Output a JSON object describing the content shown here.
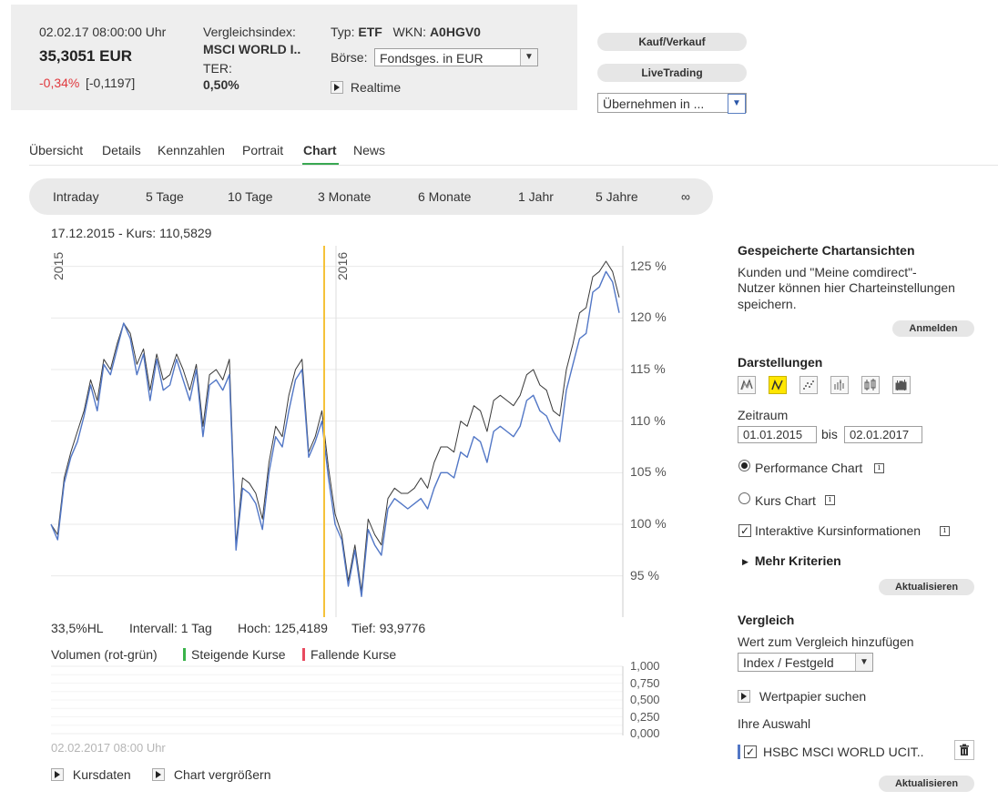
{
  "header": {
    "datetime": "02.02.17  08:00:00 Uhr",
    "price": "35,3051 EUR",
    "change_pct": "-0,34%",
    "change_abs": "[-0,1197]",
    "index_label": "Vergleichsindex:",
    "index_value": "MSCI WORLD I..",
    "ter_label": "TER:",
    "ter_value": "0,50%",
    "typ_label": "Typ:",
    "typ_value": "ETF",
    "wkn_label": "WKN:",
    "wkn_value": "A0HGV0",
    "boerse_label": "Börse:",
    "boerse_value": "Fondsges. in EUR",
    "realtime_label": "Realtime",
    "kauf_button": "Kauf/Verkauf",
    "livetrading_button": "LiveTrading",
    "uebernehmen_value": "Übernehmen in ..."
  },
  "tabs": [
    "Übersicht",
    "Details",
    "Kennzahlen",
    "Portrait",
    "Chart",
    "News"
  ],
  "active_tab": "Chart",
  "periods": [
    "Intraday",
    "5 Tage",
    "10 Tage",
    "3 Monate",
    "6 Monate",
    "1 Jahr",
    "5 Jahre",
    "∞"
  ],
  "chart": {
    "cursor_info": "17.12.2015  -  Kurs: 110,5829",
    "year_labels": [
      "2015",
      "2016"
    ],
    "bottom_info": {
      "scale": "33,5%HL",
      "interval": "Intervall: 1 Tag",
      "high": "Hoch: 125,4189",
      "low": "Tief: 93,9776"
    },
    "volume_title": "Volumen (rot-grün)",
    "legend_rising": "Steigende Kurse",
    "legend_falling": "Fallende Kurse",
    "timestamp": "02.02.2017 08:00 Uhr",
    "colors": {
      "series_main": "#5277c6",
      "series_compare": "#3a3a3a",
      "cursor_line": "#f5c23a",
      "rising": "#3ab34a",
      "falling": "#e84a5f"
    }
  },
  "chart_data": {
    "type": "line",
    "x_range": [
      "01.01.2015",
      "02.01.2017"
    ],
    "ylim": [
      91,
      127
    ],
    "y_ticks": [
      "125 %",
      "120 %",
      "115 %",
      "110 %",
      "105 %",
      "100 %",
      "95 %"
    ],
    "y_tick_values": [
      125,
      120,
      115,
      110,
      105,
      100,
      95
    ],
    "volume_ticks": [
      "1,000",
      "0,750",
      "0,500",
      "0,250",
      "0,000"
    ],
    "cursor_date": "17.12.2015",
    "cursor_value": 110.5829,
    "series": [
      {
        "color": "#5277c6",
        "values": [
          100,
          98.5,
          104,
          106.5,
          108,
          110.5,
          113.5,
          111,
          115.5,
          114.5,
          117,
          119.5,
          118,
          114.5,
          116.5,
          112,
          116,
          113,
          113.5,
          116,
          114,
          112,
          115,
          108.5,
          113.5,
          114,
          113,
          114.5,
          97.5,
          103.5,
          103,
          102,
          99.5,
          105,
          108.5,
          107.5,
          111,
          114,
          115,
          106.5,
          108,
          110,
          104.5,
          100,
          98.5,
          94,
          97.5,
          93,
          99.5,
          98,
          97,
          101.5,
          102.5,
          102,
          101.5,
          102,
          102.5,
          101.5,
          103.5,
          105,
          105,
          104.5,
          107,
          106.5,
          108.5,
          108,
          106,
          109,
          109.5,
          109,
          108.5,
          109.5,
          112,
          112.5,
          111,
          110.5,
          109,
          108,
          113,
          115.5,
          118,
          118.5,
          122.5,
          123,
          124.5,
          123.5,
          120.5
        ]
      },
      {
        "color": "#3a3a3a",
        "values": [
          100,
          99,
          104.5,
          107,
          109,
          111,
          114,
          112,
          116,
          115,
          117.5,
          119.5,
          118.5,
          115.5,
          117,
          113,
          116.5,
          114,
          114.5,
          116.5,
          115,
          113,
          115.5,
          109.5,
          114.5,
          115,
          114,
          116,
          98,
          104.5,
          104,
          103,
          100.5,
          106,
          109.5,
          108.5,
          112.5,
          115,
          116,
          107,
          108.5,
          111,
          105.5,
          101,
          99,
          94.5,
          98,
          93.5,
          100.5,
          99,
          98,
          102.5,
          103.5,
          103,
          103,
          103.5,
          104.5,
          103.5,
          106,
          107.5,
          107.5,
          107,
          110,
          109.5,
          111.5,
          111,
          109,
          112,
          112.5,
          112,
          111.5,
          112.5,
          114.5,
          115,
          113.5,
          113,
          111,
          110.5,
          115,
          117.5,
          120.5,
          121,
          124,
          124.5,
          125.5,
          124.5,
          122
        ]
      }
    ]
  },
  "right_panel": {
    "saved_title": "Gespeicherte Chartansichten",
    "saved_text": [
      "Kunden und \"Meine comdirect\"-",
      "Nutzer können hier Charteinstellungen",
      "speichern."
    ],
    "anmelden_button": "Anmelden",
    "darstellungen_title": "Darstellungen",
    "display_icons": [
      "mountain-icon",
      "line-icon",
      "dots-icon",
      "ohlc-icon",
      "candle-outline-icon",
      "candle-icon"
    ],
    "selected_display": 1,
    "zeitraum_label": "Zeitraum",
    "date_from": "01.01.2015",
    "bis_label": "bis",
    "date_to": "02.01.2017",
    "performance_label": "Performance Chart",
    "kurs_label": "Kurs Chart",
    "interaktive_label": "Interaktive Kursinformationen",
    "mehr_label": "Mehr Kriterien",
    "aktualisieren_button": "Aktualisieren",
    "vergleich_title": "Vergleich",
    "vergleich_add_label": "Wert zum Vergleich hinzufügen",
    "vergleich_select": "Index / Festgeld",
    "wertpapier_label": "Wertpapier suchen",
    "auswahl_label": "Ihre Auswahl",
    "auswahl_item": "HSBC MSCI WORLD UCIT..",
    "auswahl_color": "#5277c6"
  },
  "footer_links": [
    "Kursdaten",
    "Chart vergrößern"
  ]
}
